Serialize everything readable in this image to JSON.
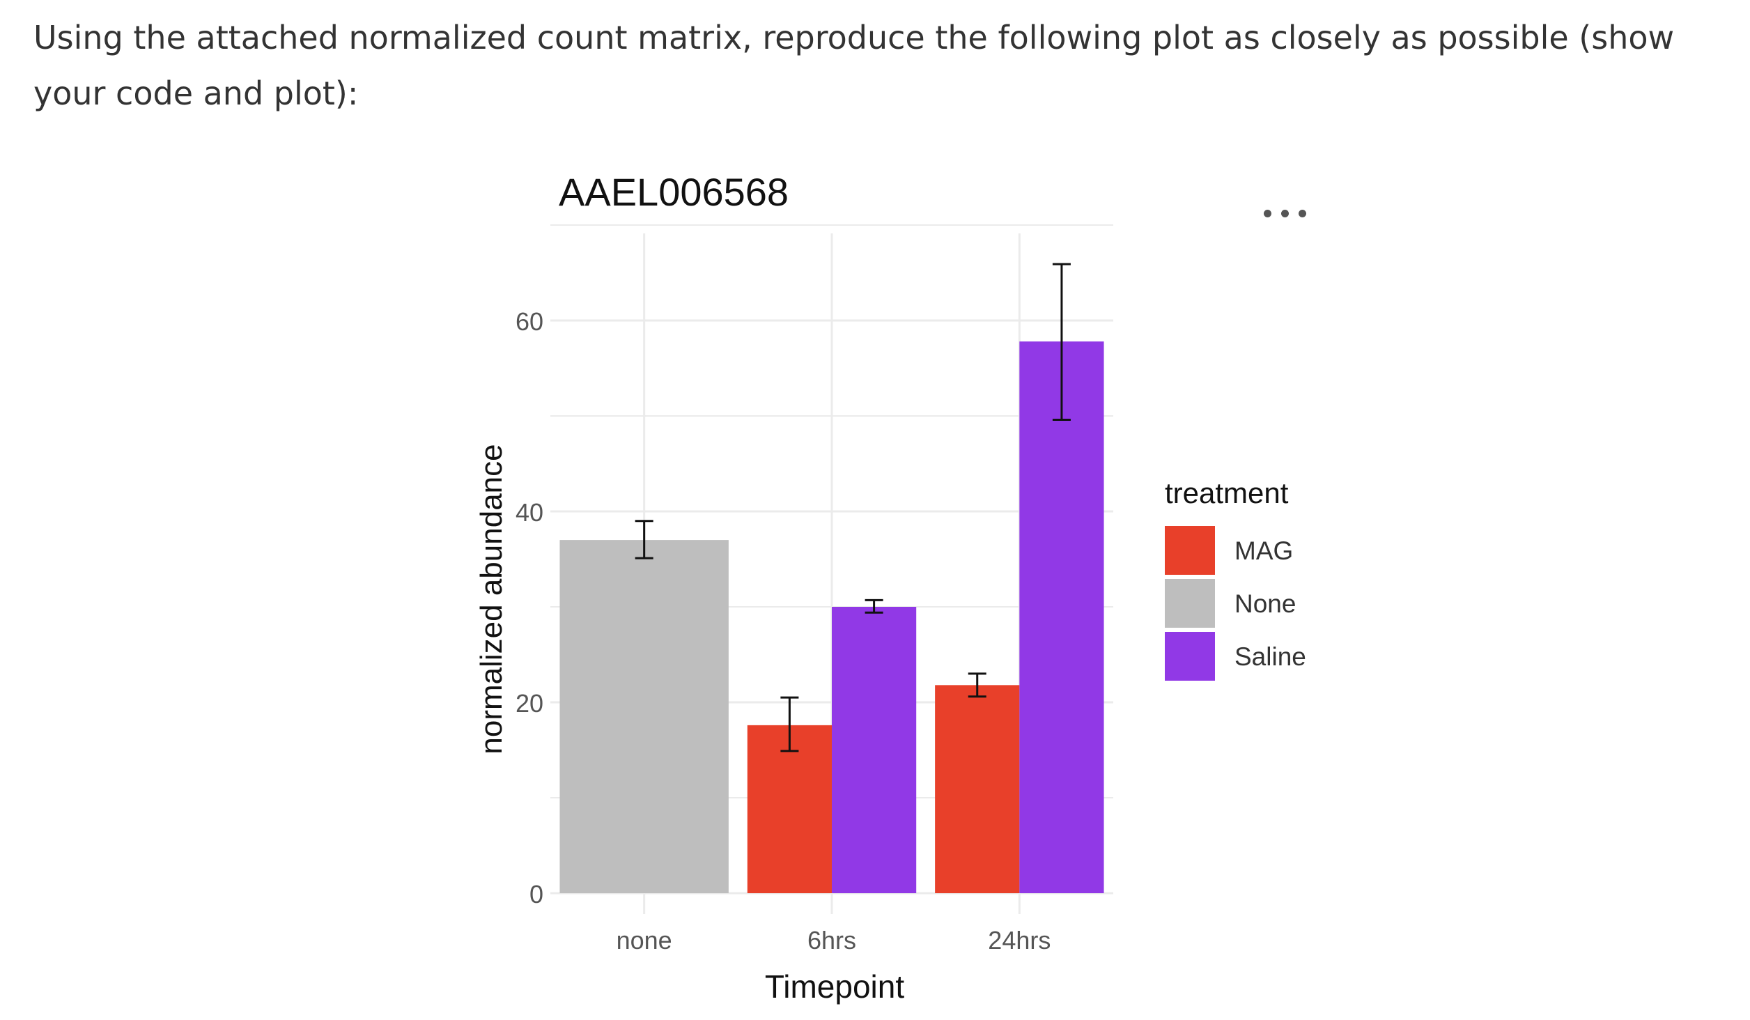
{
  "prompt_text": "Using the attached normalized count matrix, reproduce the following plot as closely as possible (show your code and plot):",
  "more_menu": {
    "icon": "more-horizontal-icon"
  },
  "colors": {
    "MAG": "#E8402A",
    "None": "#BEBEBE",
    "Saline": "#9139E6",
    "grid": "#EBEBEB",
    "errorbar": "#111111"
  },
  "chart_data": {
    "type": "bar",
    "title": "AAEL006568",
    "xlabel": "Timepoint",
    "ylabel": "normalized abundance",
    "categories": [
      "none",
      "6hrs",
      "24hrs"
    ],
    "yticks": [
      "0",
      "20",
      "40",
      "60"
    ],
    "ylim": [
      0,
      60
    ],
    "grid": true,
    "legend": {
      "title": "treatment",
      "placement": "right",
      "entries": [
        "MAG",
        "None",
        "Saline"
      ]
    },
    "series": [
      {
        "name": "MAG",
        "values": [
          null,
          17.6,
          21.8
        ],
        "error_low": [
          null,
          14.9,
          20.6
        ],
        "error_high": [
          null,
          20.5,
          23.0
        ]
      },
      {
        "name": "None",
        "values": [
          37.0,
          null,
          null
        ],
        "error_low": [
          35.1,
          null,
          null
        ],
        "error_high": [
          39.0,
          null,
          null
        ]
      },
      {
        "name": "Saline",
        "values": [
          null,
          30.0,
          57.8
        ],
        "error_low": [
          null,
          29.4,
          49.6
        ],
        "error_high": [
          null,
          30.7,
          65.9
        ]
      }
    ]
  }
}
